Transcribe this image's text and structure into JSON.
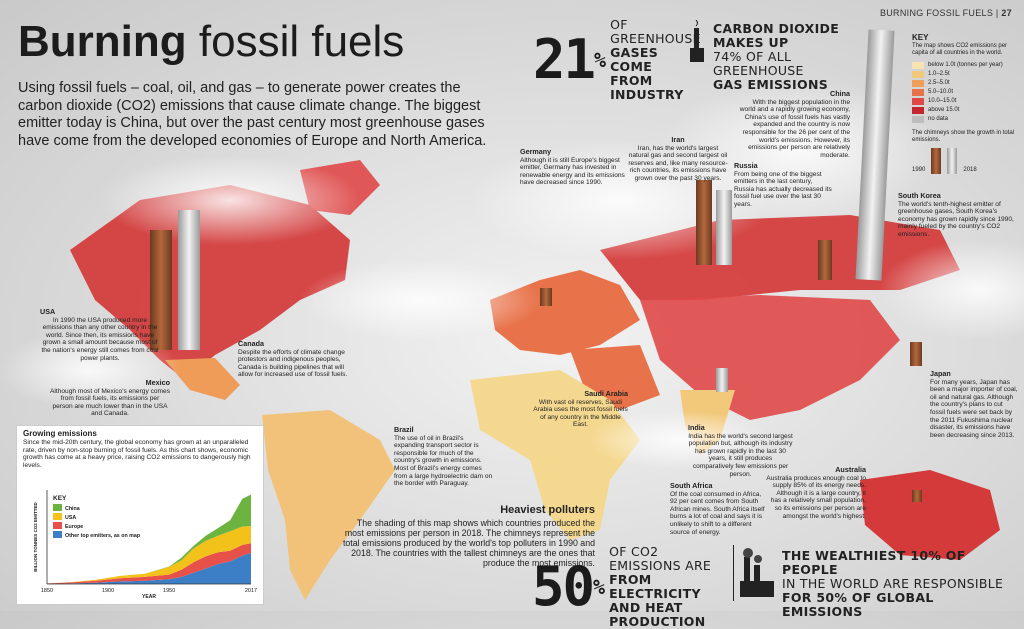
{
  "header": {
    "section": "BURNING FOSSIL FUELS",
    "page": "27"
  },
  "title": {
    "bold": "Burning",
    "light": "fossil fuels"
  },
  "intro": "Using fossil fuels – coal, oil, and gas – to generate power creates the carbon dioxide (CO2) emissions that cause climate change. The biggest emitter today is China, but over the past century most greenhouse gases have come from the developed economies of Europe and North America.",
  "stats": {
    "industry": {
      "pct": "21",
      "sign": "%",
      "line1": "OF GREENHOUSE",
      "line2": "GASES COME",
      "line3": "FROM INDUSTRY"
    },
    "co2": {
      "line1": "CARBON DIOXIDE MAKES UP",
      "line2": "74% OF ALL GREENHOUSE",
      "line3": "GAS EMISSIONS"
    },
    "electricity": {
      "pct": "50",
      "sign": "%",
      "line1": "OF CO2 EMISSIONS ARE",
      "line2": "FROM ELECTRICITY",
      "line3": "AND HEAT PRODUCTION"
    },
    "wealthiest": {
      "line1": "THE WEALTHIEST 10% OF PEOPLE",
      "line2": "IN THE WORLD ARE RESPONSIBLE",
      "line3": "FOR 50% OF GLOBAL EMISSIONS"
    }
  },
  "key": {
    "title": "KEY",
    "desc": "The map shows CO2 emissions per capita of all countries in the world.",
    "items": [
      {
        "label": "below 1.0t (tonnes per year)",
        "color": "#f7e4b0"
      },
      {
        "label": "1.0–2.5t",
        "color": "#f2c87a"
      },
      {
        "label": "2.5–5.0t",
        "color": "#eea05a"
      },
      {
        "label": "5.0–10.0t",
        "color": "#e8734a"
      },
      {
        "label": "10.0–15.0t",
        "color": "#e04848"
      },
      {
        "label": "above 15.0t",
        "color": "#c4252e"
      },
      {
        "label": "no data",
        "color": "#bdbdbd"
      }
    ],
    "chimney_note": "The chimneys show the growth in total emissions.",
    "year1": "1990",
    "year2": "2018"
  },
  "countries": {
    "usa": {
      "name": "USA",
      "text": "In 1990 the USA produced more emissions than any other country in the world. Since then, its emissions have grown a small amount because most of the nation's energy still comes from coal power plants."
    },
    "canada": {
      "name": "Canada",
      "text": "Despite the efforts of climate change protestors and indigenous peoples, Canada is building pipelines that will allow for increased use of fossil fuels."
    },
    "mexico": {
      "name": "Mexico",
      "text": "Although most of Mexico's energy comes from fossil fuels, its emissions per person are much lower than in the USA and Canada."
    },
    "brazil": {
      "name": "Brazil",
      "text": "The use of oil in Brazil's expanding transport sector is responsible for much of the country's growth in emissions. Most of Brazil's energy comes from a large hydroelectric dam on the border with Paraguay."
    },
    "germany": {
      "name": "Germany",
      "text": "Although it is still Europe's biggest emitter, Germany has invested in renewable energy and its emissions have decreased since 1990."
    },
    "iran": {
      "name": "Iran",
      "text": "Iran, has the world's largest natural gas and second largest oil reserves and, like many resource-rich countries, its emissions have grown over the past 30 years."
    },
    "russia": {
      "name": "Russia",
      "text": "From being one of the biggest emitters in the last century, Russia has actually decreased its fossil fuel use over the last 30 years."
    },
    "china": {
      "name": "China",
      "text": "With the biggest population in the world and a rapidly growing economy, China's use of fossil fuels has vastly expanded and the country is now responsible for the 26 per cent of the world's emissions. However, its emissions per person are relatively moderate."
    },
    "south_korea": {
      "name": "South Korea",
      "text": "The world's tenth-highest emitter of greenhouse gases, South Korea's economy has grown rapidly since 1990, mainly fueled by the country's CO2 emissions."
    },
    "saudi": {
      "name": "Saudi Arabia",
      "text": "With vast oil reserves, Saudi Arabia uses the most fossil fuels of any country in the Middle East."
    },
    "india": {
      "name": "India",
      "text": "India has the world's second largest population but, although its industry has grown rapidly in the last 30 years, it still produces comparatively few emissions per person."
    },
    "japan": {
      "name": "Japan",
      "text": "For many years, Japan has been a major importer of coal, oil and natural gas. Although the country's plans to cut fossil fuels were set back by the 2011 Fukushima nuclear disaster, its emissions have been decreasing since 2013."
    },
    "south_africa": {
      "name": "South Africa",
      "text": "Of the coal consumed in Africa, 92 per cent comes from South African mines. South Africa itself burns a lot of coal and says it is unlikely to shift to a different source of energy."
    },
    "australia": {
      "name": "Australia",
      "text": "Australia produces enough coal to supply 85% of its energy needs. Although it is a large country, it has a relatively small population, so its emissions per person are amongst the world's highest."
    }
  },
  "growth": {
    "title": "Growing emissions",
    "text": "Since the mid-20th century, the global economy has grown at an unparalleled rate, driven by non-stop burning of fossil fuels. As this chart shows, economic growth has come at a heavy price, raising CO2 emissions to dangerously high levels."
  },
  "polluters": {
    "title": "Heaviest polluters",
    "text": "The shading of this map shows which countries produced the most emissions per person in 2018. The chimneys represent the total emissions produced by the world's top polluters in 1990 and 2018. The countries with the tallest chimneys are the ones that produce the most emissions."
  },
  "chart_data": {
    "type": "area",
    "title": "",
    "xlabel": "YEAR",
    "ylabel": "BILLION TONNES CO2 EMITTED",
    "x": [
      1850,
      1870,
      1890,
      1910,
      1930,
      1950,
      1960,
      1970,
      1980,
      1990,
      2000,
      2010,
      2017
    ],
    "xticks": [
      "1850",
      "1900",
      "1950",
      "2017"
    ],
    "legend_title": "KEY",
    "legend_position": "top-left",
    "stacked": true,
    "series": [
      {
        "name": "Other top emitters, as on map",
        "color": "#3d7fc7",
        "values": [
          0.1,
          0.2,
          0.4,
          0.8,
          1.0,
          1.5,
          2.2,
          3.5,
          4.8,
          6.2,
          7.0,
          8.8,
          9.6
        ]
      },
      {
        "name": "Europe",
        "color": "#e8504a",
        "values": [
          0.1,
          0.3,
          0.6,
          1.0,
          1.2,
          1.4,
          2.2,
          3.2,
          3.8,
          3.6,
          3.3,
          3.3,
          3.0
        ]
      },
      {
        "name": "USA",
        "color": "#f2c21b",
        "values": [
          0.0,
          0.1,
          0.3,
          0.7,
          1.0,
          2.4,
          2.9,
          4.3,
          4.8,
          5.1,
          6.0,
          5.7,
          5.3
        ]
      },
      {
        "name": "China",
        "color": "#6db33f",
        "values": [
          0.0,
          0.0,
          0.0,
          0.0,
          0.0,
          0.1,
          0.8,
          0.8,
          1.5,
          2.4,
          3.4,
          8.6,
          9.8
        ]
      }
    ]
  }
}
